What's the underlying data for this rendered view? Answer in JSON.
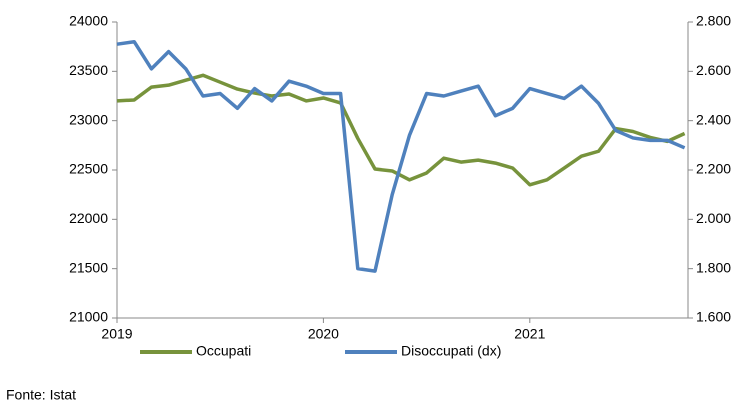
{
  "chart_data": {
    "type": "line",
    "source": "Fonte: Istat",
    "categories": [
      "2019",
      null,
      null,
      null,
      null,
      null,
      null,
      null,
      null,
      null,
      null,
      null,
      "2020",
      null,
      null,
      null,
      null,
      null,
      null,
      null,
      null,
      null,
      null,
      null,
      "2021",
      null,
      null,
      null,
      null,
      null,
      null,
      null,
      null,
      null
    ],
    "series": [
      {
        "name": "Occupati",
        "color": "#77933c",
        "axis": "y",
        "values": [
          23200,
          23210,
          23340,
          23360,
          23410,
          23460,
          23390,
          23320,
          23280,
          23250,
          23270,
          23200,
          23230,
          23180,
          22820,
          22510,
          22490,
          22400,
          22470,
          22620,
          22580,
          22600,
          22570,
          22520,
          22350,
          22400,
          22520,
          22640,
          22690,
          22920,
          22890,
          22830,
          22790,
          22870
        ]
      },
      {
        "name": "Disoccupati (dx)",
        "color": "#4f81bd",
        "axis": "y2",
        "values": [
          2710,
          2720,
          2610,
          2680,
          2610,
          2500,
          2510,
          2450,
          2530,
          2480,
          2560,
          2540,
          2510,
          2510,
          1800,
          1790,
          2100,
          2340,
          2510,
          2500,
          2520,
          2540,
          2420,
          2450,
          2530,
          2510,
          2490,
          2540,
          2470,
          2360,
          2330,
          2320,
          2320,
          2290
        ]
      }
    ],
    "ylim": [
      21000,
      24000
    ],
    "yticks": [
      21000,
      21500,
      22000,
      22500,
      23000,
      23500,
      24000
    ],
    "y2lim": [
      1600,
      2800
    ],
    "y2ticks": [
      {
        "value": 1600,
        "label": "1.600"
      },
      {
        "value": 1800,
        "label": "1.800"
      },
      {
        "value": 2000,
        "label": "2.000"
      },
      {
        "value": 2200,
        "label": "2.200"
      },
      {
        "value": 2400,
        "label": "2.400"
      },
      {
        "value": 2600,
        "label": "2.600"
      },
      {
        "value": 2800,
        "label": "2.800"
      }
    ],
    "grid": false,
    "legend": "bottom"
  }
}
